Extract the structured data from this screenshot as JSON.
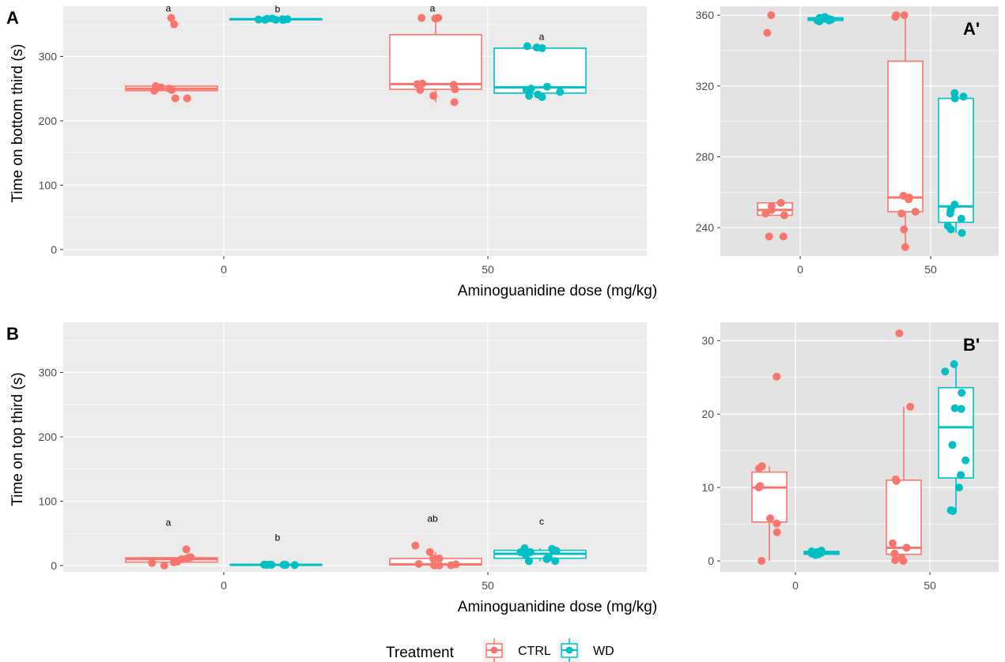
{
  "colors": {
    "CTRL": "#F8766D",
    "WD": "#00BFC4",
    "panel_bg": "#EBEBEB",
    "inset_bg": "#E3E3E3",
    "grid_major": "#FFFFFF"
  },
  "legend": {
    "title": "Treatment",
    "items": [
      "CTRL",
      "WD"
    ],
    "placement": "bottom"
  },
  "chart_data": [
    {
      "id": "A",
      "panel_label": "A",
      "type": "box",
      "xlabel": "Aminoguanidine dose (mg/kg)",
      "ylabel": "Time on bottom third (s)",
      "xcategories": [
        "0",
        "50"
      ],
      "yticks": [
        0,
        100,
        200,
        300
      ],
      "ylim": [
        -10,
        378
      ],
      "groups": [
        {
          "dose": "0",
          "treatment": "CTRL",
          "q1": 247,
          "median": 250,
          "q3": 254,
          "whisker_low": 247,
          "whisker_high": 254,
          "points": [
            360,
            350,
            254,
            252,
            250,
            248,
            247,
            235,
            235
          ],
          "sig": "a"
        },
        {
          "dose": "0",
          "treatment": "WD",
          "q1": 357,
          "median": 358,
          "q3": 358.5,
          "whisker_low": 356.5,
          "whisker_high": 359,
          "points": [
            359,
            358.5,
            358,
            358,
            357.5,
            357,
            357,
            356.5
          ],
          "sig": "b"
        },
        {
          "dose": "50",
          "treatment": "CTRL",
          "q1": 249,
          "median": 257,
          "q3": 334,
          "whisker_low": 229,
          "whisker_high": 360,
          "points": [
            360,
            360,
            359,
            258,
            257,
            256,
            249,
            248,
            239,
            229
          ],
          "sig": "a"
        },
        {
          "dose": "50",
          "treatment": "WD",
          "q1": 243,
          "median": 252,
          "q3": 313,
          "whisker_low": 237,
          "whisker_high": 316,
          "points": [
            316,
            314,
            313,
            253,
            250,
            248,
            245,
            241,
            239,
            237
          ],
          "sig": "a"
        }
      ]
    },
    {
      "id": "A-inset",
      "panel_label": "A'",
      "type": "box",
      "xcategories": [
        "0",
        "50"
      ],
      "yticks": [
        240,
        280,
        320,
        360
      ],
      "ylim": [
        224,
        365
      ],
      "groups_ref": "A"
    },
    {
      "id": "B",
      "panel_label": "B",
      "type": "box",
      "xlabel": "Aminoguanidine dose (mg/kg)",
      "ylabel": "Time on top third (s)",
      "xcategories": [
        "0",
        "50"
      ],
      "yticks": [
        0,
        100,
        200,
        300
      ],
      "ylim": [
        -10,
        378
      ],
      "groups": [
        {
          "dose": "0",
          "treatment": "CTRL",
          "q1": 5.3,
          "median": 10,
          "q3": 12.1,
          "whisker_low": 0,
          "whisker_high": 12.9,
          "points": [
            25.1,
            12.9,
            12.6,
            10.2,
            10,
            5.8,
            5.1,
            3.9,
            0
          ],
          "sig": "a"
        },
        {
          "dose": "0",
          "treatment": "WD",
          "q1": 0.9,
          "median": 1.1,
          "q3": 1.3,
          "whisker_low": 0.8,
          "whisker_high": 1.4,
          "points": [
            1.4,
            1.3,
            1.2,
            1.1,
            1,
            0.9,
            0.8
          ],
          "sig": "b"
        },
        {
          "dose": "50",
          "treatment": "CTRL",
          "q1": 0.9,
          "median": 1.8,
          "q3": 11,
          "whisker_low": 0,
          "whisker_high": 21,
          "points": [
            31,
            21,
            11.1,
            10.9,
            2.4,
            1.8,
            1,
            0.4,
            0.1,
            0
          ],
          "sig": "ab"
        },
        {
          "dose": "50",
          "treatment": "WD",
          "q1": 11.3,
          "median": 18.2,
          "q3": 23.6,
          "whisker_low": 6.8,
          "whisker_high": 26.8,
          "points": [
            26.8,
            25.8,
            22.9,
            20.8,
            20.7,
            15.8,
            13.7,
            11.7,
            10,
            6.9,
            6.8
          ],
          "sig": "c"
        }
      ]
    },
    {
      "id": "B-inset",
      "panel_label": "B'",
      "type": "box",
      "xcategories": [
        "0",
        "50"
      ],
      "yticks": [
        0,
        10,
        20,
        30
      ],
      "ylim": [
        -1.5,
        32.5
      ],
      "groups_ref": "B"
    }
  ]
}
